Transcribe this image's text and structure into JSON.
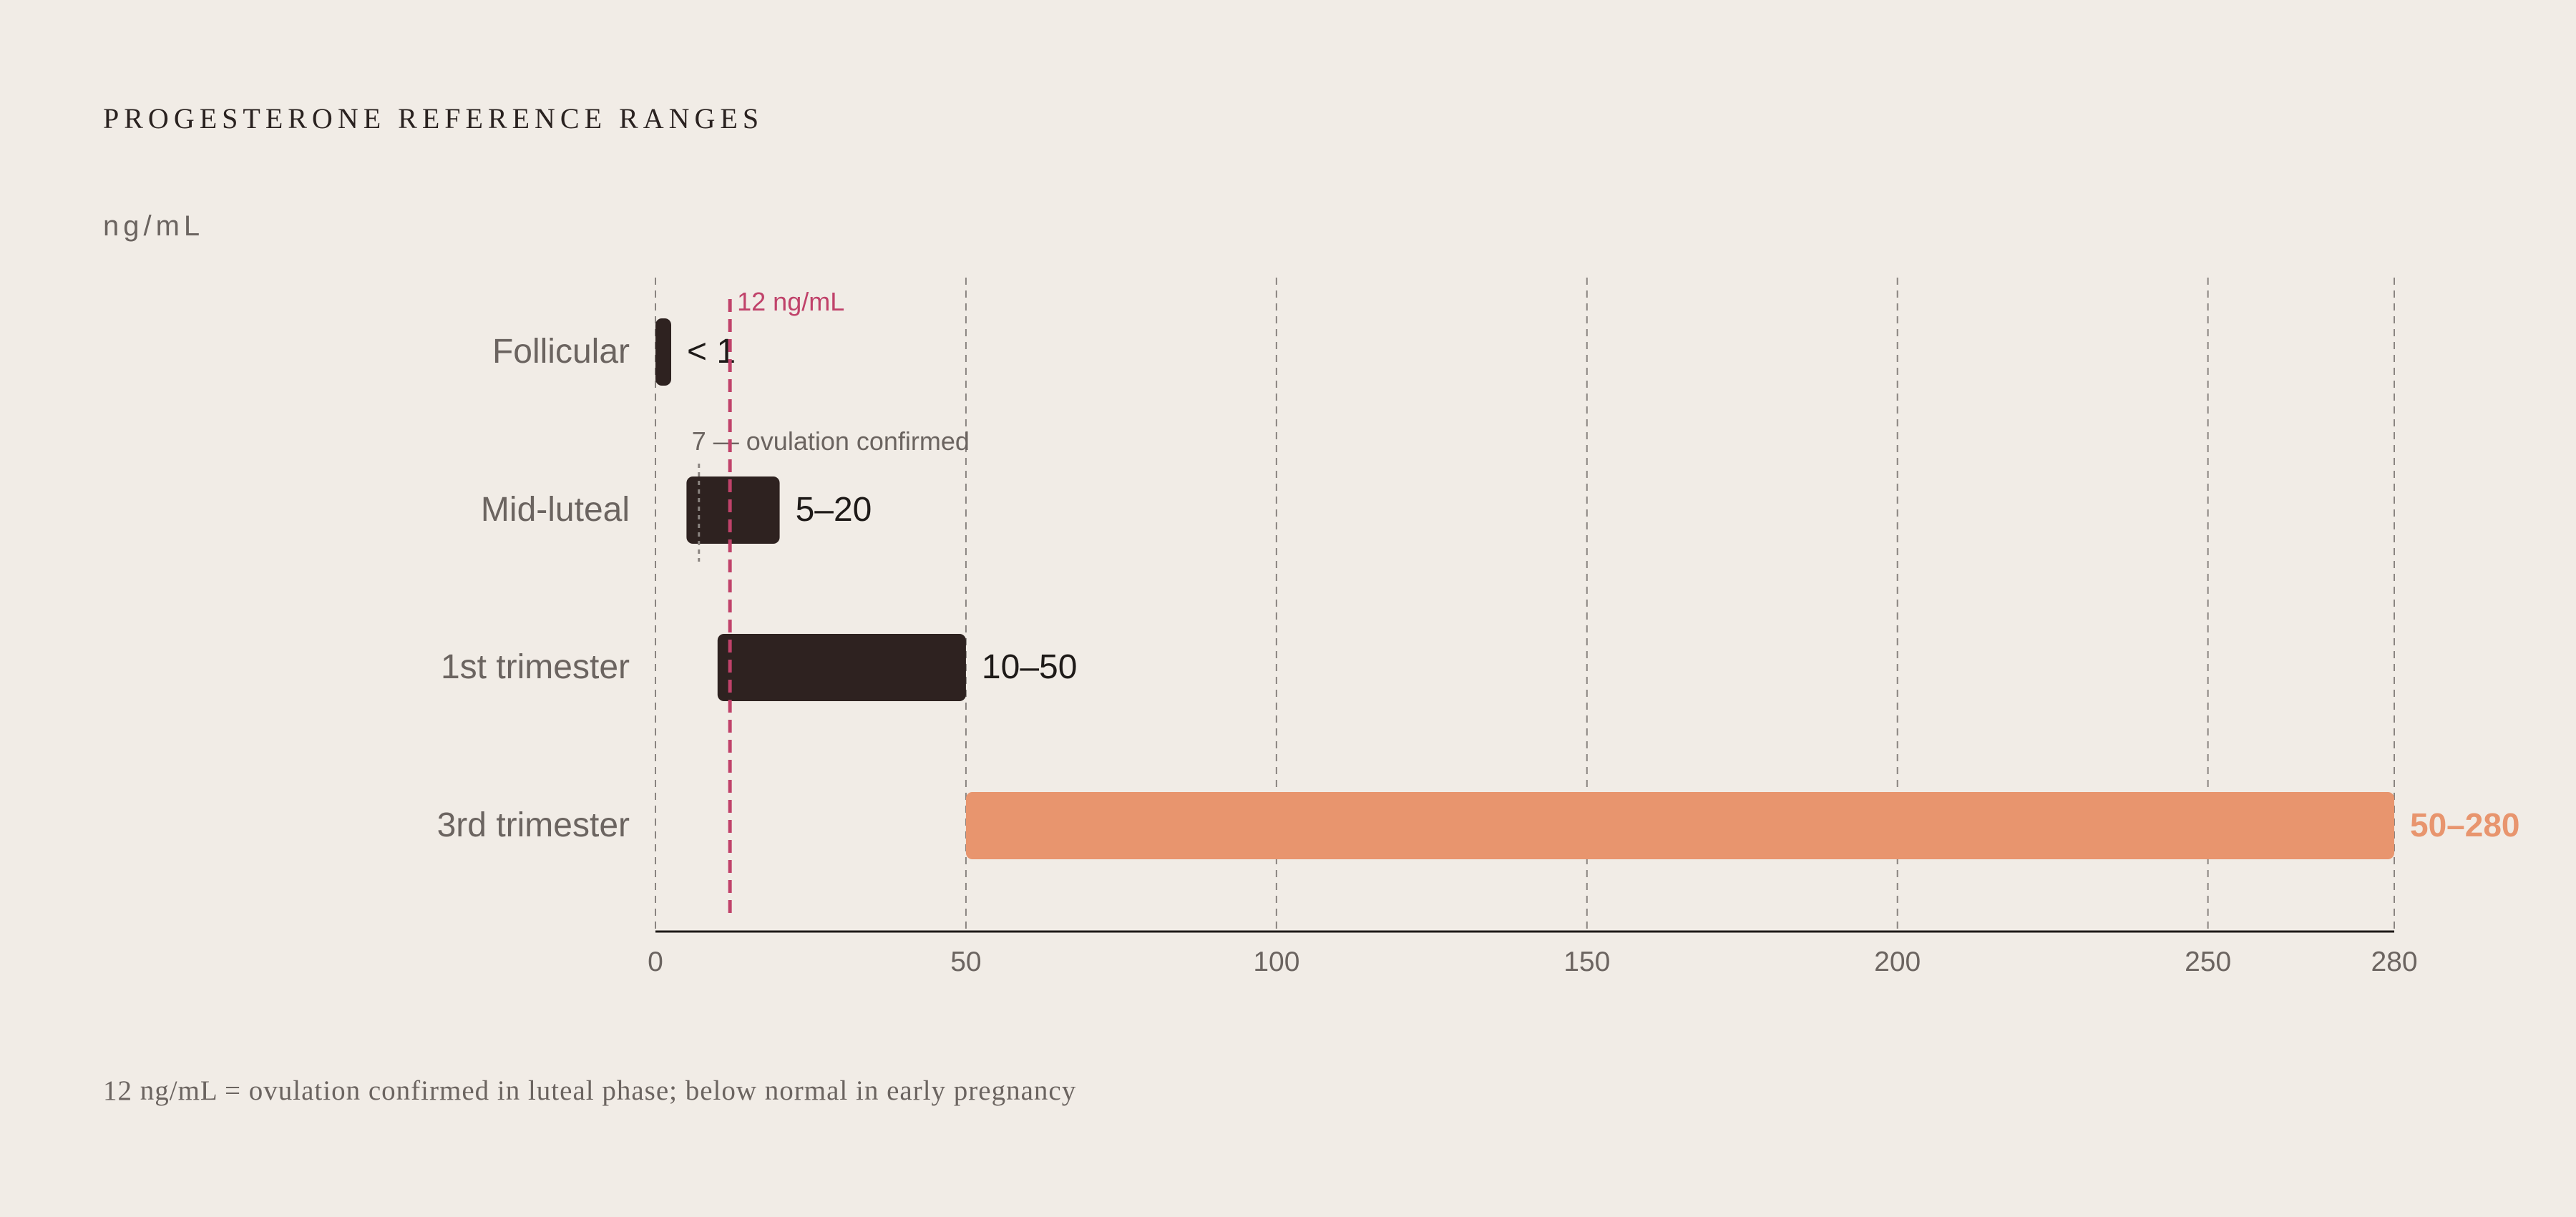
{
  "chart_data": {
    "type": "bar",
    "orientation": "horizontal",
    "title": "PROGESTERONE REFERENCE RANGES",
    "unit": "ng/mL",
    "footnote": "12 ng/mL = ovulation confirmed in luteal phase; below normal in early pregnancy",
    "xlim": [
      0,
      280
    ],
    "xticks": [
      0,
      50,
      100,
      150,
      200,
      250,
      280
    ],
    "grid": true,
    "categories": [
      "Follicular",
      "Mid-luteal",
      "1st trimester",
      "3rd trimester"
    ],
    "ranges": [
      {
        "category": "Follicular",
        "low": 0,
        "high": 1,
        "label": "< 1",
        "highlight": false
      },
      {
        "category": "Mid-luteal",
        "low": 5,
        "high": 20,
        "label": "5–20",
        "highlight": false
      },
      {
        "category": "1st trimester",
        "low": 10,
        "high": 50,
        "label": "10–50",
        "highlight": false
      },
      {
        "category": "3rd trimester",
        "low": 50,
        "high": 280,
        "label": "50–280",
        "highlight": true
      }
    ],
    "reference_line": {
      "value": 12,
      "label": "12 ng/mL",
      "color": "#c0426a"
    },
    "annotations": [
      {
        "value": 7,
        "category": "Mid-luteal",
        "label": "7 — ovulation confirmed"
      }
    ],
    "colors": {
      "bar": "#2e2220",
      "highlight": "#e8956e",
      "grid": "#8a8480",
      "axis": "#1e1a18",
      "tick_text": "#6b6460",
      "category_text": "#6b6460",
      "value_text": "#1e1a18"
    }
  }
}
